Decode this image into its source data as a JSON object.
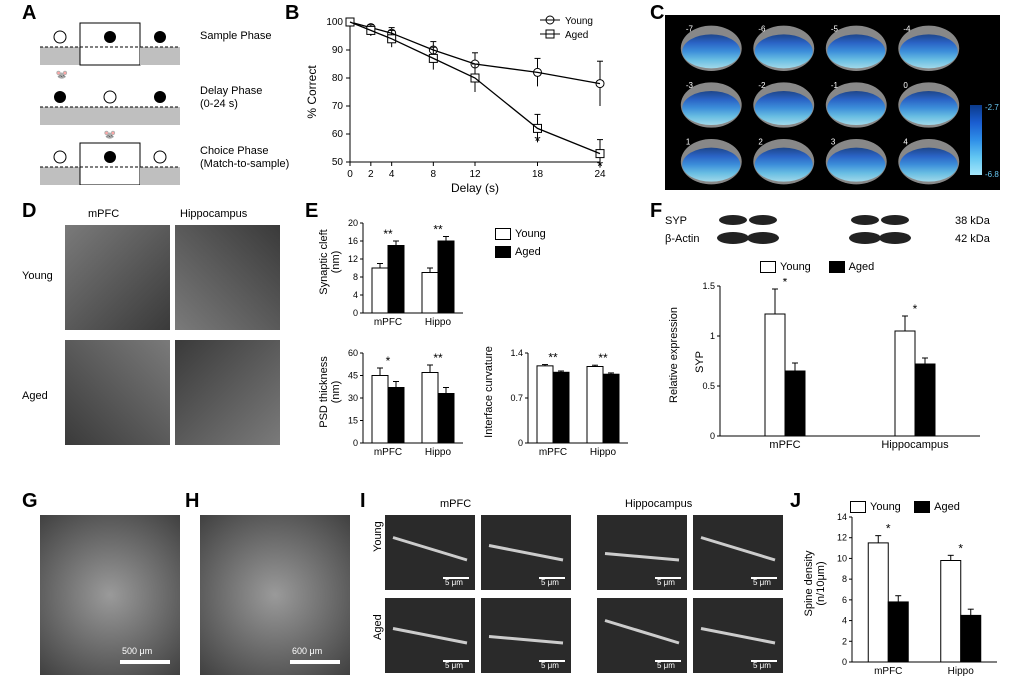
{
  "labels": {
    "A": "A",
    "B": "B",
    "C": "C",
    "D": "D",
    "E": "E",
    "F": "F",
    "G": "G",
    "H": "H",
    "I": "I",
    "J": "J"
  },
  "A": {
    "sample": "Sample Phase",
    "delay": "Delay Phase",
    "delay_sub": "(0-24 s)",
    "choice": "Choice Phase",
    "choice_sub": "(Match-to-sample)"
  },
  "B": {
    "type": "line",
    "xlabel": "Delay (s)",
    "ylabel": "% Correct",
    "ylim": [
      50,
      100
    ],
    "ytick": [
      50,
      60,
      70,
      80,
      90,
      100
    ],
    "xtick": [
      0,
      2,
      4,
      8,
      12,
      18,
      24
    ],
    "series": {
      "young": {
        "label": "Young",
        "marker": "circle",
        "values": [
          100,
          98,
          96,
          90,
          85,
          82,
          78
        ],
        "err": [
          0,
          1,
          2,
          3,
          4,
          5,
          8
        ]
      },
      "aged": {
        "label": "Aged",
        "marker": "square",
        "values": [
          100,
          97,
          94,
          87,
          80,
          62,
          53
        ],
        "err": [
          0,
          2,
          3,
          4,
          5,
          5,
          5
        ]
      }
    },
    "sig_x": [
      18,
      24
    ],
    "colors": {
      "line": "#000000",
      "bg": "#ffffff"
    }
  },
  "C": {
    "grid": [
      4,
      3
    ],
    "slices": [
      "-7",
      "-6",
      "-5",
      "-4",
      "-3",
      "-2",
      "-1",
      "0",
      "1",
      "2",
      "3",
      "4"
    ],
    "colorbar": {
      "min": -6.8,
      "max": -2.7,
      "colors": [
        "#0b3a8a",
        "#1a5dd0",
        "#2f8fe8",
        "#63c7f2",
        "#a6e7fb"
      ]
    },
    "bg": "#000000"
  },
  "D": {
    "cols": [
      "mPFC",
      "Hippocampus"
    ],
    "rows": [
      "Young",
      "Aged"
    ],
    "ph_color": "#5a5a5a"
  },
  "E": {
    "type": "bar",
    "legend": {
      "young": "Young",
      "aged": "Aged"
    },
    "colors": {
      "young": "#ffffff",
      "aged": "#000000",
      "axis": "#000000"
    },
    "cleft": {
      "ylabel1": "Synaptic cleft",
      "ylabel2": "(nm)",
      "ylim": [
        0,
        20
      ],
      "ytick": [
        0,
        4,
        8,
        12,
        16,
        20
      ],
      "cats": [
        "mPFC",
        "Hippo"
      ],
      "young": {
        "v": [
          10,
          9
        ],
        "e": [
          1,
          1
        ]
      },
      "aged": {
        "v": [
          15,
          16
        ],
        "e": [
          1,
          1
        ]
      },
      "sig": [
        "**",
        "**"
      ]
    },
    "psd": {
      "ylabel1": "PSD thickness",
      "ylabel2": "(nm)",
      "ylim": [
        0,
        60
      ],
      "ytick": [
        0,
        15,
        30,
        45,
        60
      ],
      "cats": [
        "mPFC",
        "Hippo"
      ],
      "young": {
        "v": [
          45,
          47
        ],
        "e": [
          5,
          5
        ]
      },
      "aged": {
        "v": [
          37,
          33
        ],
        "e": [
          4,
          4
        ]
      },
      "sig": [
        "*",
        "**"
      ]
    },
    "curv": {
      "ylabel": "Interface curvature",
      "ylim": [
        0,
        1.4
      ],
      "ytick": [
        0,
        0.7,
        1.4
      ],
      "cats": [
        "mPFC",
        "Hippo"
      ],
      "young": {
        "v": [
          1.2,
          1.19
        ],
        "e": [
          0.02,
          0.02
        ]
      },
      "aged": {
        "v": [
          1.1,
          1.07
        ],
        "e": [
          0.02,
          0.02
        ]
      },
      "sig": [
        "**",
        "**"
      ]
    }
  },
  "F": {
    "blot": {
      "syp": "SYP",
      "actin": "β-Actin",
      "syp_kda": "38 kDa",
      "actin_kda": "42 kDa",
      "band_color": "#222222"
    },
    "legend": {
      "young": "Young",
      "aged": "Aged"
    },
    "colors": {
      "young": "#ffffff",
      "aged": "#000000"
    },
    "chart": {
      "ylabel1": "SYP",
      "ylabel2": "Relative expression",
      "ylim": [
        0,
        1.5
      ],
      "ytick": [
        0,
        0.5,
        1.0,
        1.5
      ],
      "cats": [
        "mPFC",
        "Hippocampus"
      ],
      "young": {
        "v": [
          1.22,
          1.05
        ],
        "e": [
          0.25,
          0.15
        ]
      },
      "aged": {
        "v": [
          0.65,
          0.72
        ],
        "e": [
          0.08,
          0.06
        ]
      },
      "sig": [
        "*",
        "*"
      ]
    }
  },
  "G": {
    "scalebar": "500 μm",
    "ph_color": "#6a6a6a"
  },
  "H": {
    "scalebar": "600 μm",
    "ph_color": "#6a6a6a"
  },
  "I": {
    "cols": [
      "mPFC",
      "Hippocampus"
    ],
    "rows": [
      "Young",
      "Aged"
    ],
    "scalebar": "5 μm",
    "ph_color": "#3a3a3a"
  },
  "J": {
    "type": "bar",
    "ylabel1": "Spine density",
    "ylabel2": "(n/10μm)",
    "ylim": [
      0,
      14
    ],
    "ytick": [
      0,
      2,
      4,
      6,
      8,
      10,
      12,
      14
    ],
    "cats": [
      "mPFC",
      "Hippo"
    ],
    "legend": {
      "young": "Young",
      "aged": "Aged"
    },
    "colors": {
      "young": "#ffffff",
      "aged": "#000000"
    },
    "young": {
      "v": [
        11.5,
        9.8
      ],
      "e": [
        0.7,
        0.5
      ]
    },
    "aged": {
      "v": [
        5.8,
        4.5
      ],
      "e": [
        0.6,
        0.6
      ]
    },
    "sig": [
      "*",
      "*"
    ]
  }
}
